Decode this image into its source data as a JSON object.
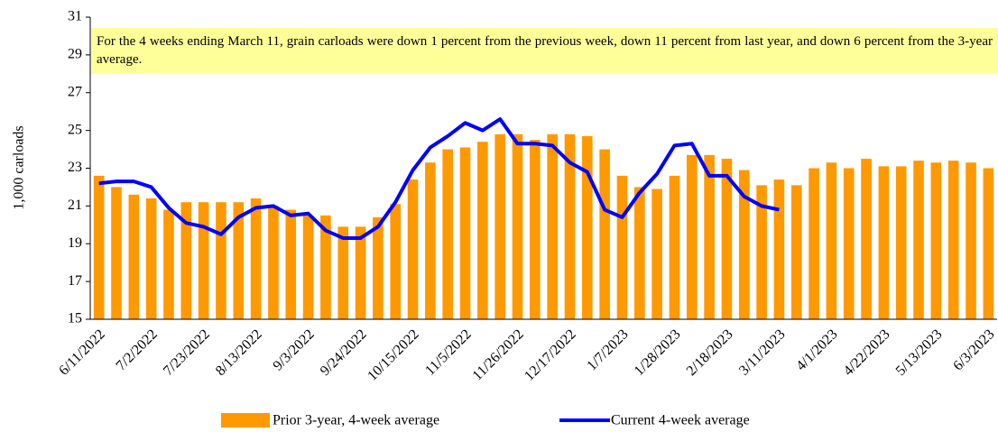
{
  "chart_data": {
    "type": "bar_line",
    "annotation": "For the 4 weeks ending March 11, grain carloads were down 1 percent from the previous week, down 11 percent from last year, and down 6 percent from the 3-year average.",
    "y_label": "1,000 carloads",
    "categories": [
      "6/11/2022",
      null,
      null,
      "7/2/2022",
      null,
      null,
      "7/23/2022",
      null,
      null,
      "8/13/2022",
      null,
      null,
      "9/3/2022",
      null,
      null,
      "9/24/2022",
      null,
      null,
      "10/15/2022",
      null,
      null,
      "11/5/2022",
      null,
      null,
      "11/26/2022",
      null,
      null,
      "12/17/2022",
      null,
      null,
      "1/7/2023",
      null,
      null,
      "1/28/2023",
      null,
      null,
      "2/18/2023",
      null,
      null,
      "3/11/2023",
      null,
      null,
      "4/1/2023",
      null,
      null,
      "4/22/2023",
      null,
      null,
      "5/13/2023",
      null,
      null,
      "6/3/2023"
    ],
    "series": [
      {
        "name": "Prior 3-year, 4-week average",
        "color": "#ff9900",
        "kind": "bar",
        "values": [
          22.6,
          22.0,
          21.6,
          21.4,
          20.8,
          21.2,
          21.2,
          21.2,
          21.2,
          21.4,
          21.0,
          20.8,
          20.5,
          20.5,
          19.9,
          19.9,
          20.4,
          21.1,
          22.4,
          23.3,
          24.0,
          24.1,
          24.4,
          24.8,
          24.8,
          24.5,
          24.8,
          24.8,
          24.7,
          24.0,
          22.6,
          22.0,
          21.9,
          22.6,
          23.7,
          23.7,
          23.5,
          22.9,
          22.1,
          22.4,
          22.1,
          23.0,
          23.3,
          23.0,
          23.5,
          23.1,
          23.1,
          23.4,
          23.3,
          23.4,
          23.3,
          23.0
        ]
      },
      {
        "name": "Current 4-week average",
        "color": "#0000ff",
        "kind": "line",
        "values": [
          22.2,
          22.3,
          22.3,
          22.0,
          20.9,
          20.1,
          19.9,
          19.5,
          20.4,
          20.9,
          21.0,
          20.5,
          20.6,
          19.7,
          19.3,
          19.3,
          19.9,
          21.2,
          22.9,
          24.1,
          24.7,
          25.4,
          25.0,
          25.6,
          24.3,
          24.3,
          24.2,
          23.3,
          22.8,
          20.8,
          20.4,
          21.7,
          22.7,
          24.2,
          24.3,
          22.6,
          22.6,
          21.5,
          21.0,
          20.8,
          null,
          null,
          null,
          null,
          null,
          null,
          null,
          null,
          null,
          null,
          null,
          null
        ]
      }
    ],
    "ylim": [
      15,
      31
    ],
    "yticks": [
      15,
      17,
      19,
      21,
      23,
      25,
      27,
      29,
      31
    ]
  }
}
